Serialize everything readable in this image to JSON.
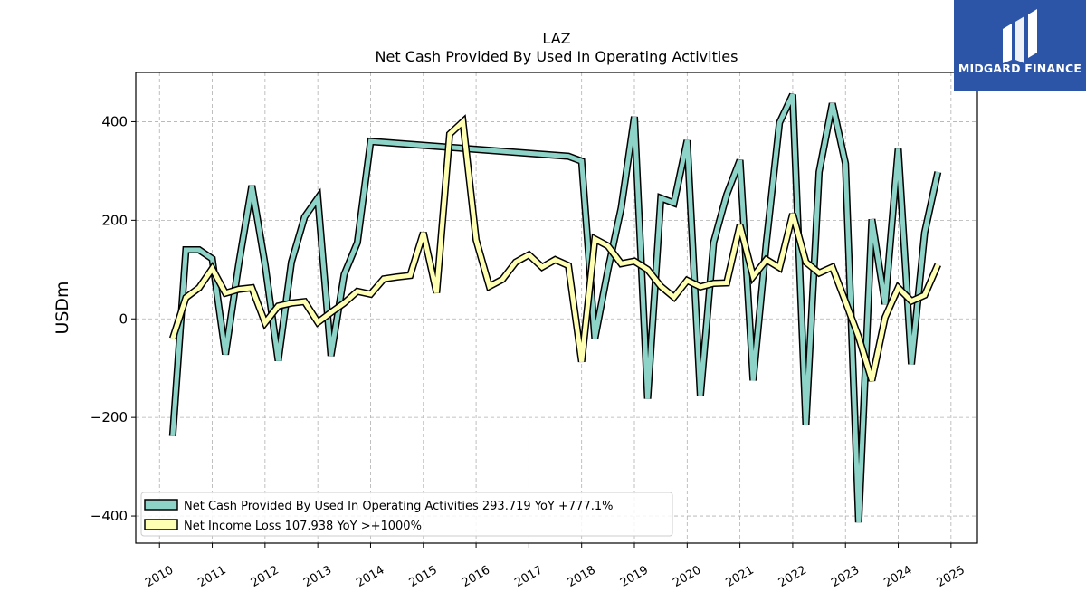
{
  "colors": {
    "series1": "#8dd3c7",
    "series2": "#ffffb3",
    "outline": "#000000",
    "logo_bg": "#2c55a8"
  },
  "logo": {
    "text": "MIDGARD FINANCE",
    "icon": "midgard-finance-logo-icon"
  },
  "chart_data": {
    "type": "line",
    "title": "LAZ",
    "subtitle": "Net Cash Provided By Used In Operating Activities",
    "xlabel": "",
    "ylabel": "USDm",
    "xlim": [
      2009.55,
      2025.5
    ],
    "ylim": [
      -455,
      500
    ],
    "x_ticks": [
      "2010",
      "2011",
      "2012",
      "2013",
      "2014",
      "2015",
      "2016",
      "2017",
      "2018",
      "2019",
      "2020",
      "2021",
      "2022",
      "2023",
      "2024",
      "2025"
    ],
    "y_ticks": [
      -400,
      -200,
      0,
      200,
      400
    ],
    "y_tick_labels": [
      "−400",
      "−200",
      "0",
      "200",
      "400"
    ],
    "grid": true,
    "legend_position": "lower-left",
    "series": [
      {
        "name": "Net Cash Provided By Used In Operating Activities",
        "legend_label": "Net Cash Provided By Used In Operating Activities  293.719 YoY +777.1%",
        "x": [
          2010.25,
          2010.5,
          2010.75,
          2011.0,
          2011.25,
          2011.5,
          2011.75,
          2012.0,
          2012.25,
          2012.5,
          2012.75,
          2013.0,
          2013.25,
          2013.5,
          2013.75,
          2014.0,
          2017.75,
          2018.0,
          2018.25,
          2018.5,
          2018.75,
          2019.0,
          2019.25,
          2019.5,
          2019.75,
          2020.0,
          2020.25,
          2020.5,
          2020.75,
          2021.0,
          2021.25,
          2021.5,
          2021.75,
          2022.0,
          2022.25,
          2022.5,
          2022.75,
          2023.0,
          2023.25,
          2023.5,
          2023.75,
          2024.0,
          2024.25,
          2024.5,
          2024.75
        ],
        "y": [
          -238,
          140,
          140,
          122,
          -72,
          110,
          270,
          110,
          -85,
          115,
          207,
          245,
          -75,
          90,
          155,
          360,
          330,
          320,
          -40,
          100,
          225,
          410,
          -162,
          245,
          235,
          362,
          -157,
          155,
          252,
          322,
          -125,
          155,
          398,
          455,
          -215,
          298,
          437,
          315,
          -413,
          202,
          30,
          345,
          -92,
          175,
          298
        ]
      },
      {
        "name": "Net Income Loss",
        "legend_label": "Net Income Loss  107.938 YoY >+1000%",
        "x": [
          2010.25,
          2010.5,
          2010.75,
          2011.0,
          2011.25,
          2011.5,
          2011.75,
          2012.0,
          2012.25,
          2012.5,
          2012.75,
          2013.0,
          2013.25,
          2013.5,
          2013.75,
          2014.0,
          2014.25,
          2014.5,
          2014.75,
          2015.0,
          2015.25,
          2015.5,
          2015.75,
          2016.0,
          2016.25,
          2016.5,
          2016.75,
          2017.0,
          2017.25,
          2017.5,
          2017.75,
          2018.0,
          2018.25,
          2018.5,
          2018.75,
          2019.0,
          2019.25,
          2019.5,
          2019.75,
          2020.0,
          2020.25,
          2020.5,
          2020.75,
          2021.0,
          2021.25,
          2021.5,
          2021.75,
          2022.0,
          2022.25,
          2022.5,
          2022.75,
          2023.0,
          2023.25,
          2023.5,
          2023.75,
          2024.0,
          2024.25,
          2024.5,
          2024.75
        ],
        "y": [
          -40,
          43,
          63,
          102,
          52,
          60,
          63,
          -8,
          26,
          32,
          35,
          -7,
          13,
          32,
          56,
          50,
          81,
          85,
          88,
          175,
          53,
          375,
          400,
          160,
          66,
          80,
          115,
          130,
          105,
          120,
          108,
          -87,
          162,
          148,
          112,
          117,
          100,
          66,
          44,
          78,
          65,
          72,
          73,
          190,
          86,
          120,
          104,
          213,
          115,
          93,
          105,
          35,
          -37,
          -125,
          3,
          63,
          36,
          48,
          110
        ]
      }
    ]
  }
}
